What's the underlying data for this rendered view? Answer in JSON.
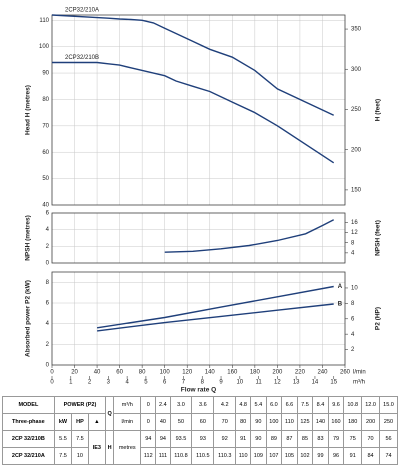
{
  "chart_data": [
    {
      "type": "line",
      "ylabel": "Head H  (metres)",
      "y2label": "H  (feet)",
      "ylim": [
        40,
        112
      ],
      "yticks": [
        40,
        50,
        60,
        70,
        80,
        90,
        100,
        110
      ],
      "y2lim": [
        131.2,
        367.5
      ],
      "y2ticks": [
        150,
        200,
        250,
        300,
        350
      ],
      "xlim": [
        0,
        260
      ],
      "grid": true,
      "series": [
        {
          "name": "2CP32/210A",
          "color": "#1f3f7a",
          "x": [
            0,
            40,
            50,
            60,
            70,
            80,
            90,
            100,
            110,
            125,
            140,
            160,
            180,
            200,
            250
          ],
          "values": [
            112,
            111,
            110.8,
            110.5,
            110.3,
            110,
            109,
            107,
            105,
            102,
            99,
            96,
            91,
            84,
            74
          ]
        },
        {
          "name": "2CP32/210B",
          "color": "#1f3f7a",
          "x": [
            0,
            40,
            50,
            60,
            70,
            80,
            90,
            100,
            110,
            125,
            140,
            160,
            180,
            200,
            250
          ],
          "values": [
            94,
            94,
            93.5,
            93,
            92,
            91,
            90,
            89,
            87,
            85,
            83,
            79,
            75,
            70,
            56
          ]
        }
      ]
    },
    {
      "type": "line",
      "ylabel": "NPSH  (metres)",
      "y2label": "NPSH  (feet)",
      "ylim": [
        0,
        6
      ],
      "yticks": [
        0,
        2,
        4,
        6
      ],
      "y2lim": [
        0,
        19.7
      ],
      "y2ticks": [
        4,
        8,
        12,
        16
      ],
      "xlim": [
        0,
        260
      ],
      "grid": true,
      "series": [
        {
          "color": "#1f3f7a",
          "x": [
            100,
            125,
            150,
            175,
            200,
            225,
            240,
            250
          ],
          "values": [
            1.3,
            1.4,
            1.7,
            2.1,
            2.7,
            3.5,
            4.5,
            5.2
          ]
        }
      ]
    },
    {
      "type": "line",
      "ylabel": "Absorbed power  P2  (kW)",
      "y2label": "P2  (HP)",
      "ylim": [
        0,
        9
      ],
      "yticks": [
        0,
        2,
        4,
        6,
        8
      ],
      "y2lim": [
        0,
        12.07
      ],
      "y2ticks": [
        2,
        4,
        6,
        8,
        10
      ],
      "xlim": [
        0,
        260
      ],
      "xticks": [
        0,
        20,
        40,
        60,
        80,
        100,
        120,
        140,
        160,
        180,
        200,
        220,
        240,
        260
      ],
      "xunit": "l/min",
      "x2lim": [
        0,
        15.6
      ],
      "x2ticks": [
        0,
        1,
        2,
        3,
        4,
        5,
        6,
        7,
        8,
        9,
        10,
        11,
        12,
        13,
        14,
        15
      ],
      "x2unit": "m³/h",
      "xlabel": "Flow rate  Q",
      "grid": true,
      "series": [
        {
          "name": "A",
          "color": "#1f3f7a",
          "x": [
            40,
            100,
            150,
            200,
            250
          ],
          "values": [
            3.6,
            4.6,
            5.6,
            6.6,
            7.6
          ]
        },
        {
          "name": "B",
          "color": "#1f3f7a",
          "x": [
            40,
            100,
            150,
            200,
            250
          ],
          "values": [
            3.3,
            4.1,
            4.7,
            5.3,
            5.9
          ]
        }
      ]
    }
  ],
  "table": {
    "model": "MODEL",
    "power": "POWER (P2)",
    "q": "Q",
    "three_phase": "Three-phase",
    "kw": "kW",
    "hp": "HP",
    "mark": "▲",
    "q_m3h": "m³/h",
    "q_lmin": "l/min",
    "efficiency": "IE3",
    "h": "H",
    "h_unit": "metres",
    "m3h": [
      "0",
      "2.4",
      "3.0",
      "3.6",
      "4.2",
      "4.8",
      "5.4",
      "6.0",
      "6.6",
      "7.5",
      "8.4",
      "9.6",
      "10.8",
      "12.0",
      "15.0"
    ],
    "lmin": [
      "0",
      "40",
      "50",
      "60",
      "70",
      "80",
      "90",
      "100",
      "110",
      "125",
      "140",
      "160",
      "180",
      "200",
      "250"
    ],
    "rows": [
      {
        "model": "2CP 32/210B",
        "kw": "5.5",
        "hp": "7.5",
        "h": [
          "94",
          "94",
          "93.5",
          "93",
          "92",
          "91",
          "90",
          "89",
          "87",
          "85",
          "83",
          "79",
          "75",
          "70",
          "56"
        ]
      },
      {
        "model": "2CP 32/210A",
        "kw": "7.5",
        "hp": "10",
        "h": [
          "112",
          "111",
          "110.8",
          "110.5",
          "110.3",
          "110",
          "109",
          "107",
          "105",
          "102",
          "99",
          "96",
          "91",
          "84",
          "74"
        ]
      }
    ]
  }
}
